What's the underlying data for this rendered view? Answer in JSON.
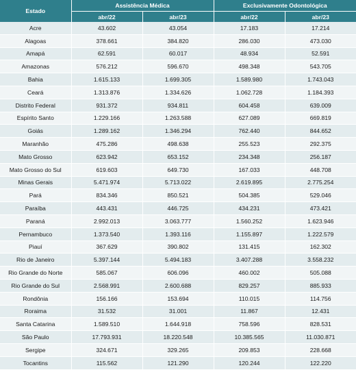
{
  "header": {
    "estado": "Estado",
    "group1": "Assistência Médica",
    "group2": "Exclusivamente Odontológica",
    "sub1": "abr/22",
    "sub2": "abr/23",
    "sub3": "abr/22",
    "sub4": "abr/23"
  },
  "rows": [
    {
      "estado": "Acre",
      "am22": "43.602",
      "am23": "43.054",
      "eo22": "17.183",
      "eo23": "17.214"
    },
    {
      "estado": "Alagoas",
      "am22": "378.661",
      "am23": "384.820",
      "eo22": "286.030",
      "eo23": "473.030"
    },
    {
      "estado": "Amapá",
      "am22": "62.591",
      "am23": "60.017",
      "eo22": "48.934",
      "eo23": "52.591"
    },
    {
      "estado": "Amazonas",
      "am22": "576.212",
      "am23": "596.670",
      "eo22": "498.348",
      "eo23": "543.705"
    },
    {
      "estado": "Bahia",
      "am22": "1.615.133",
      "am23": "1.699.305",
      "eo22": "1.589.980",
      "eo23": "1.743.043"
    },
    {
      "estado": "Ceará",
      "am22": "1.313.876",
      "am23": "1.334.626",
      "eo22": "1.062.728",
      "eo23": "1.184.393"
    },
    {
      "estado": "Distrito Federal",
      "am22": "931.372",
      "am23": "934.811",
      "eo22": "604.458",
      "eo23": "639.009"
    },
    {
      "estado": "Espírito Santo",
      "am22": "1.229.166",
      "am23": "1.263.588",
      "eo22": "627.089",
      "eo23": "669.819"
    },
    {
      "estado": "Goiás",
      "am22": "1.289.162",
      "am23": "1.346.294",
      "eo22": "762.440",
      "eo23": "844.652"
    },
    {
      "estado": "Maranhão",
      "am22": "475.286",
      "am23": "498.638",
      "eo22": "255.523",
      "eo23": "292.375"
    },
    {
      "estado": "Mato Grosso",
      "am22": "623.942",
      "am23": "653.152",
      "eo22": "234.348",
      "eo23": "256.187"
    },
    {
      "estado": "Mato Grosso do Sul",
      "am22": "619.603",
      "am23": "649.730",
      "eo22": "167.033",
      "eo23": "448.708"
    },
    {
      "estado": "Minas Gerais",
      "am22": "5.471.974",
      "am23": "5.713.022",
      "eo22": "2.619.895",
      "eo23": "2.775.254"
    },
    {
      "estado": "Pará",
      "am22": "834.346",
      "am23": "850.521",
      "eo22": "504.385",
      "eo23": "529.046"
    },
    {
      "estado": "Paraíba",
      "am22": "443.431",
      "am23": "446.725",
      "eo22": "434.231",
      "eo23": "473.421"
    },
    {
      "estado": "Paraná",
      "am22": "2.992.013",
      "am23": "3.063.777",
      "eo22": "1.560.252",
      "eo23": "1.623.946"
    },
    {
      "estado": "Pernambuco",
      "am22": "1.373.540",
      "am23": "1.393.116",
      "eo22": "1.155.897",
      "eo23": "1.222.579"
    },
    {
      "estado": "Piauí",
      "am22": "367.629",
      "am23": "390.802",
      "eo22": "131.415",
      "eo23": "162.302"
    },
    {
      "estado": "Rio de Janeiro",
      "am22": "5.397.144",
      "am23": "5.494.183",
      "eo22": "3.407.288",
      "eo23": "3.558.232"
    },
    {
      "estado": "Rio Grande do Norte",
      "am22": "585.067",
      "am23": "606.096",
      "eo22": "460.002",
      "eo23": "505.088"
    },
    {
      "estado": "Rio Grande do Sul",
      "am22": "2.568.991",
      "am23": "2.600.688",
      "eo22": "829.257",
      "eo23": "885.933"
    },
    {
      "estado": "Rondônia",
      "am22": "156.166",
      "am23": "153.694",
      "eo22": "110.015",
      "eo23": "114.756"
    },
    {
      "estado": "Roraima",
      "am22": "31.532",
      "am23": "31.001",
      "eo22": "11.867",
      "eo23": "12.431"
    },
    {
      "estado": "Santa Catarina",
      "am22": "1.589.510",
      "am23": "1.644.918",
      "eo22": "758.596",
      "eo23": "828.531"
    },
    {
      "estado": "São Paulo",
      "am22": "17.793.931",
      "am23": "18.220.548",
      "eo22": "10.385.565",
      "eo23": "11.030.871"
    },
    {
      "estado": "Sergipe",
      "am22": "324.671",
      "am23": "329.265",
      "eo22": "209.853",
      "eo23": "228.668"
    },
    {
      "estado": "Tocantins",
      "am22": "115.562",
      "am23": "121.290",
      "eo22": "120.244",
      "eo23": "122.220"
    }
  ]
}
